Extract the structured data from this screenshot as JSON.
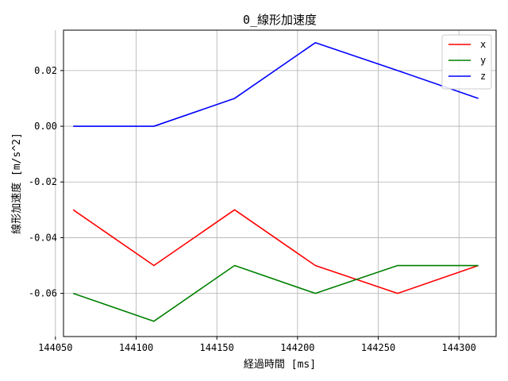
{
  "chart_data": {
    "type": "line",
    "title": "0_線形加速度",
    "xlabel": "経過時間 [ms]",
    "ylabel": "線形加速度 [m/s^2]",
    "x": [
      144061,
      144111,
      144161,
      144211,
      144262,
      144312
    ],
    "xlim": [
      144055,
      144323
    ],
    "ylim": [
      -0.0755,
      0.0345
    ],
    "xticks": [
      144050,
      144100,
      144150,
      144200,
      144250,
      144300
    ],
    "yticks": [
      -0.06,
      -0.04,
      -0.02,
      0.0,
      0.02
    ],
    "ytick_labels": [
      "-0.06",
      "-0.04",
      "-0.02",
      "0.00",
      "0.02"
    ],
    "grid": true,
    "legend_position": "top-right",
    "series": [
      {
        "name": "x",
        "color": "#ff0000",
        "values": [
          -0.03,
          -0.05,
          -0.03,
          -0.05,
          -0.06,
          -0.05
        ]
      },
      {
        "name": "y",
        "color": "#008000",
        "values": [
          -0.06,
          -0.07,
          -0.05,
          -0.06,
          -0.05,
          -0.05
        ]
      },
      {
        "name": "z",
        "color": "#0000ff",
        "values": [
          0.0,
          0.0,
          0.01,
          0.03,
          0.02,
          0.01
        ]
      }
    ]
  }
}
